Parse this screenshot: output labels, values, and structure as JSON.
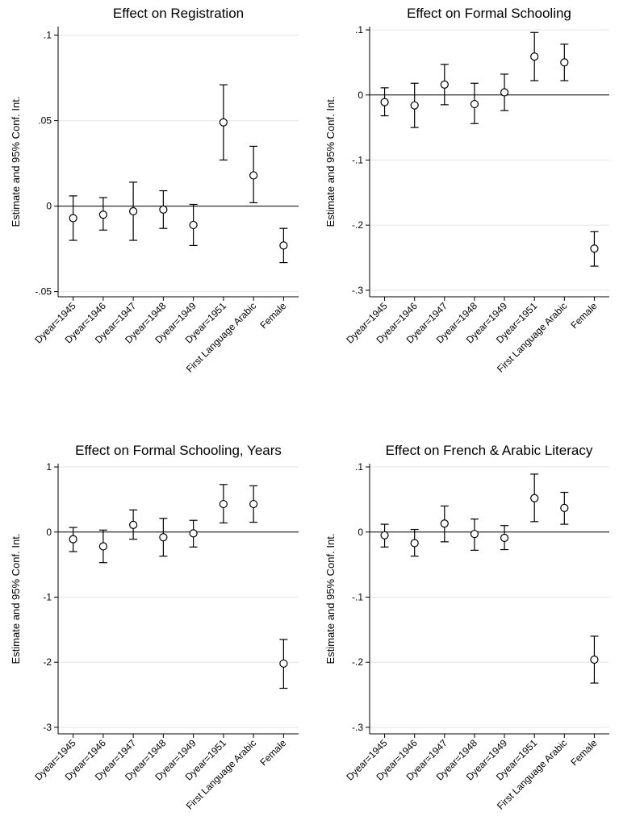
{
  "chart_data": [
    {
      "type": "coefplot",
      "title": "Effect on Registration",
      "ylabel": "Estimate and 95% Conf. Int.",
      "categories": [
        "Dyear=1945",
        "Dyear=1946",
        "Dyear=1947",
        "Dyear=1948",
        "Dyear=1949",
        "Dyear=1951",
        "First Language Arabic",
        "Female"
      ],
      "estimate": [
        -0.007,
        -0.005,
        -0.003,
        -0.002,
        -0.011,
        0.049,
        0.018,
        -0.023
      ],
      "ci_low": [
        -0.02,
        -0.014,
        -0.02,
        -0.013,
        -0.023,
        0.027,
        0.002,
        -0.033
      ],
      "ci_high": [
        0.006,
        0.005,
        0.014,
        0.009,
        0.001,
        0.071,
        0.035,
        -0.013
      ],
      "ylim": [
        -0.053,
        0.105
      ],
      "yticks": [
        -0.05,
        0,
        0.05,
        0.1
      ],
      "yticklabels": [
        "-.05",
        "0",
        ".05",
        ".1"
      ],
      "reference_line": 0,
      "grid": true
    },
    {
      "type": "coefplot",
      "title": "Effect on Formal Schooling",
      "ylabel": "Estimate and 95% Conf. Int.",
      "categories": [
        "Dyear=1945",
        "Dyear=1946",
        "Dyear=1947",
        "Dyear=1948",
        "Dyear=1949",
        "Dyear=1951",
        "First Language Arabic",
        "Female"
      ],
      "estimate": [
        -0.011,
        -0.016,
        0.016,
        -0.014,
        0.004,
        0.059,
        0.05,
        -0.236
      ],
      "ci_low": [
        -0.032,
        -0.05,
        -0.015,
        -0.044,
        -0.024,
        0.022,
        0.022,
        -0.263
      ],
      "ci_high": [
        0.011,
        0.018,
        0.047,
        0.018,
        0.032,
        0.096,
        0.078,
        -0.21
      ],
      "ylim": [
        -0.31,
        0.105
      ],
      "yticks": [
        -0.3,
        -0.2,
        -0.1,
        0,
        0.1
      ],
      "yticklabels": [
        "-.3",
        "-.2",
        "-.1",
        "0",
        ".1"
      ],
      "reference_line": 0,
      "grid": true
    },
    {
      "type": "coefplot",
      "title": "Effect on Formal Schooling, Years",
      "ylabel": "Estimate and 95% Conf. Int.",
      "categories": [
        "Dyear=1945",
        "Dyear=1946",
        "Dyear=1947",
        "Dyear=1948",
        "Dyear=1949",
        "Dyear=1951",
        "First Language Arabic",
        "Female"
      ],
      "estimate": [
        -0.11,
        -0.22,
        0.11,
        -0.08,
        -0.02,
        0.43,
        0.43,
        -2.02
      ],
      "ci_low": [
        -0.3,
        -0.47,
        -0.11,
        -0.37,
        -0.23,
        0.14,
        0.15,
        -2.4
      ],
      "ci_high": [
        0.07,
        0.03,
        0.34,
        0.21,
        0.18,
        0.73,
        0.71,
        -1.65
      ],
      "ylim": [
        -3.1,
        1.05
      ],
      "yticks": [
        -3,
        -2,
        -1,
        0,
        1
      ],
      "yticklabels": [
        "-3",
        "-2",
        "-1",
        "0",
        "1"
      ],
      "reference_line": 0,
      "grid": true
    },
    {
      "type": "coefplot",
      "title": "Effect on French & Arabic Literacy",
      "ylabel": "Estimate and 95% Conf. Int.",
      "categories": [
        "Dyear=1945",
        "Dyear=1946",
        "Dyear=1947",
        "Dyear=1948",
        "Dyear=1949",
        "Dyear=1951",
        "First Language Arabic",
        "Female"
      ],
      "estimate": [
        -0.005,
        -0.017,
        0.013,
        -0.003,
        -0.009,
        0.052,
        0.037,
        -0.196
      ],
      "ci_low": [
        -0.023,
        -0.037,
        -0.015,
        -0.028,
        -0.027,
        0.016,
        0.012,
        -0.232
      ],
      "ci_high": [
        0.012,
        0.004,
        0.04,
        0.02,
        0.01,
        0.089,
        0.061,
        -0.16
      ],
      "ylim": [
        -0.31,
        0.105
      ],
      "yticks": [
        -0.3,
        -0.2,
        -0.1,
        0,
        0.1
      ],
      "yticklabels": [
        "-.3",
        "-.2",
        "-.1",
        "0",
        ".1"
      ],
      "reference_line": 0,
      "grid": true
    }
  ]
}
